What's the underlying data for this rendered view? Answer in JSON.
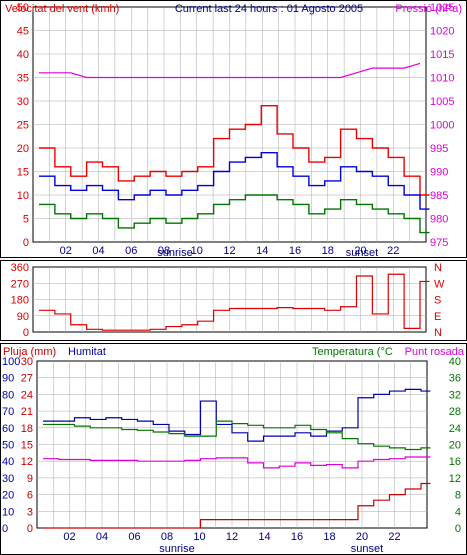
{
  "chart_data": [
    {
      "type": "line",
      "title": "Current last 24 hours : 01 Agosto 2005",
      "ylabel_left": "Velocitat del vent (kmh)",
      "ylabel_right": "Pressió (hPa)",
      "colors": {
        "gust": "#ee0000",
        "wind": "#0000dd",
        "min": "#007700",
        "pressure": "#dd00dd",
        "grid": "#aaaaaa",
        "axis_red": "#dd0000",
        "axis_pink": "#dd00dd"
      },
      "ylim_left": [
        0,
        50
      ],
      "ylim_right": [
        975,
        1025
      ],
      "y_ticks_left": [
        "0",
        "5",
        "10",
        "15",
        "20",
        "25",
        "30",
        "35",
        "40",
        "45",
        "50"
      ],
      "y_ticks_right": [
        "975",
        "980",
        "985",
        "990",
        "995",
        "1000",
        "1005",
        "1010",
        "1015",
        "1020",
        "1025"
      ],
      "x_ticks": [
        "02",
        "04",
        "06",
        "08",
        "10",
        "12",
        "14",
        "16",
        "18",
        "20",
        "22"
      ],
      "markers": [
        "sunrise",
        "sunset"
      ],
      "x": [
        0,
        1,
        2,
        3,
        4,
        5,
        6,
        7,
        8,
        9,
        10,
        11,
        12,
        13,
        14,
        15,
        16,
        17,
        18,
        19,
        20,
        21,
        22,
        23,
        24
      ],
      "series": [
        {
          "key": "gust",
          "values": [
            20,
            16,
            14,
            17,
            16,
            13,
            14,
            15,
            14,
            15,
            16,
            22,
            24,
            25,
            29,
            23,
            20,
            17,
            18,
            24,
            22,
            20,
            18,
            14,
            10
          ]
        },
        {
          "key": "wind",
          "values": [
            14,
            12,
            11,
            12,
            11,
            9,
            10,
            11,
            10,
            11,
            12,
            15,
            17,
            18,
            19,
            16,
            14,
            12,
            13,
            16,
            15,
            14,
            12,
            10,
            7
          ]
        },
        {
          "key": "min",
          "values": [
            8,
            6,
            5,
            6,
            5,
            3,
            4,
            5,
            4,
            5,
            6,
            8,
            9,
            10,
            10,
            9,
            8,
            6,
            7,
            9,
            8,
            7,
            6,
            5,
            2
          ]
        },
        {
          "key": "pressure",
          "values": [
            1011,
            1011,
            1011,
            1010,
            1010,
            1010,
            1010,
            1010,
            1010,
            1010,
            1010,
            1010,
            1010,
            1010,
            1010,
            1010,
            1010,
            1010,
            1010,
            1010,
            1011,
            1012,
            1012,
            1012,
            1013
          ]
        }
      ]
    },
    {
      "type": "line",
      "ylim": [
        0,
        360
      ],
      "y_ticks_left": [
        "0",
        "90",
        "180",
        "270",
        "360"
      ],
      "y_ticks_right": [
        "N",
        "E",
        "S",
        "W",
        "N"
      ],
      "colors": {
        "line": "#dd0000"
      },
      "series": [
        {
          "key": "direction",
          "values": [
            120,
            100,
            40,
            15,
            10,
            10,
            10,
            15,
            30,
            40,
            60,
            120,
            130,
            130,
            130,
            135,
            130,
            130,
            120,
            140,
            310,
            100,
            320,
            20,
            280
          ]
        }
      ]
    },
    {
      "type": "line",
      "legend": [
        "Pluja (mm)",
        "Humitat",
        "Temperatura (°C",
        "Punt rosada"
      ],
      "colors": {
        "rain": "#cc0000",
        "humidity": "#0000aa",
        "temp": "#007700",
        "dew": "#dd00dd"
      },
      "ylim_rain": [
        0,
        30
      ],
      "ylim_hum": [
        0,
        100
      ],
      "ylim_temp": [
        0,
        40
      ],
      "y_ticks_rain": [
        "0",
        "3",
        "6",
        "9",
        "12",
        "15",
        "18",
        "21",
        "24",
        "27",
        "30"
      ],
      "y_ticks_hum": [
        "0",
        "10",
        "20",
        "30",
        "40",
        "50",
        "60",
        "70",
        "80",
        "90",
        "100"
      ],
      "y_ticks_temp": [
        "0",
        "4",
        "8",
        "12",
        "16",
        "20",
        "24",
        "28",
        "32",
        "36",
        "40"
      ],
      "x_ticks": [
        "02",
        "04",
        "06",
        "08",
        "10",
        "12",
        "14",
        "16",
        "18",
        "20",
        "22"
      ],
      "markers": [
        "sunrise",
        "sunset"
      ],
      "x": [
        0,
        1,
        2,
        3,
        4,
        5,
        6,
        7,
        8,
        9,
        10,
        11,
        12,
        13,
        14,
        15,
        16,
        17,
        18,
        19,
        20,
        21,
        22,
        23,
        24
      ],
      "series": [
        {
          "key": "rain",
          "values": [
            0,
            0,
            0,
            0,
            0,
            0,
            0,
            0,
            0,
            0,
            1.5,
            1.5,
            1.5,
            1.5,
            1.5,
            1.5,
            1.5,
            1.5,
            1.5,
            1.5,
            4,
            5,
            6,
            7,
            8
          ]
        },
        {
          "key": "humidity",
          "values": [
            64,
            64,
            66,
            65,
            66,
            65,
            64,
            62,
            58,
            56,
            76,
            62,
            57,
            52,
            55,
            55,
            57,
            55,
            58,
            60,
            78,
            80,
            82,
            83,
            82
          ]
        },
        {
          "key": "temp",
          "values": [
            24.8,
            24.8,
            24.4,
            24.0,
            24.0,
            23.6,
            23.4,
            23.0,
            22.6,
            22.0,
            22.0,
            25.6,
            25.0,
            24.6,
            24.0,
            24.0,
            24.6,
            23.6,
            22.8,
            21.4,
            20.2,
            19.6,
            19.2,
            18.8,
            19.2
          ]
        },
        {
          "key": "dew",
          "values": [
            16.6,
            16.4,
            16.4,
            16.2,
            16.2,
            16.2,
            16.0,
            16.0,
            16.0,
            16.2,
            16.6,
            16.8,
            16.8,
            15.6,
            14.4,
            14.8,
            15.6,
            15.0,
            15.2,
            14.4,
            16.0,
            16.4,
            16.6,
            17.0,
            17.0
          ]
        }
      ]
    }
  ]
}
